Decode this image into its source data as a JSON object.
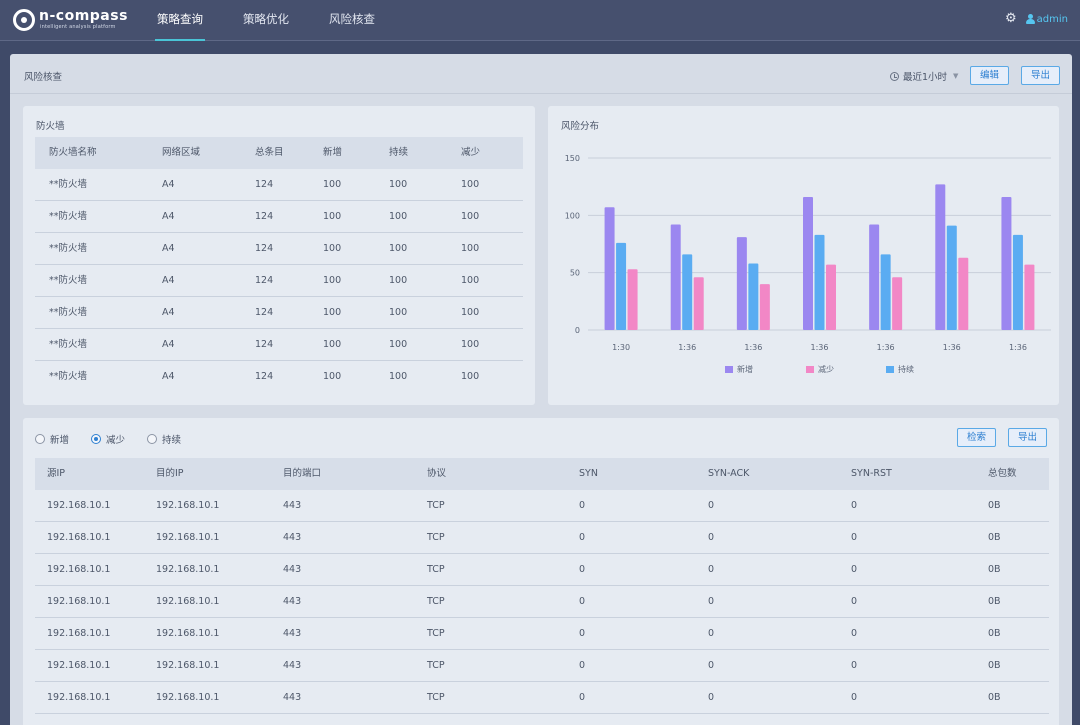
{
  "app": {
    "logo_text": "n-compass",
    "logo_subtitle": "intelligent analysis platform",
    "nav": [
      {
        "label": "策略查询",
        "active": true
      },
      {
        "label": "策略优化",
        "active": false
      },
      {
        "label": "风险核查",
        "active": false
      }
    ],
    "user_name": "admin"
  },
  "page": {
    "title": "风险核查",
    "time_range": "最近1小时",
    "edit_label": "编辑",
    "export_label": "导出"
  },
  "firewall": {
    "title": "防火墙",
    "columns": [
      "防火墙名称",
      "网络区域",
      "总条目",
      "新增",
      "持续",
      "减少"
    ],
    "rows": [
      [
        "**防火墙",
        "A4",
        "124",
        "100",
        "100",
        "100"
      ],
      [
        "**防火墙",
        "A4",
        "124",
        "100",
        "100",
        "100"
      ],
      [
        "**防火墙",
        "A4",
        "124",
        "100",
        "100",
        "100"
      ],
      [
        "**防火墙",
        "A4",
        "124",
        "100",
        "100",
        "100"
      ],
      [
        "**防火墙",
        "A4",
        "124",
        "100",
        "100",
        "100"
      ],
      [
        "**防火墙",
        "A4",
        "124",
        "100",
        "100",
        "100"
      ],
      [
        "**防火墙",
        "A4",
        "124",
        "100",
        "100",
        "100"
      ]
    ]
  },
  "chart_data": {
    "type": "bar",
    "title": "风险分布",
    "categories": [
      "1:30",
      "1:36",
      "1:36",
      "1:36",
      "1:36",
      "1:36",
      "1:36"
    ],
    "series": [
      {
        "name": "新增",
        "color": "#9b87f0",
        "values": [
          107,
          92,
          81,
          116,
          92,
          127,
          116
        ]
      },
      {
        "name": "持续",
        "color": "#5aacf2",
        "values": [
          76,
          66,
          58,
          83,
          66,
          91,
          83
        ]
      },
      {
        "name": "减少",
        "color": "#f287c6",
        "values": [
          53,
          46,
          40,
          57,
          46,
          63,
          57
        ]
      }
    ],
    "legend_order": [
      "新增",
      "减少",
      "持续"
    ],
    "ylim": [
      0,
      150
    ],
    "yticks": [
      0,
      50,
      100,
      150
    ],
    "grid": true,
    "legend": "bottom-center"
  },
  "packets": {
    "radios": [
      {
        "label": "新增",
        "checked": false
      },
      {
        "label": "减少",
        "checked": true
      },
      {
        "label": "持续",
        "checked": false
      }
    ],
    "search_label": "检索",
    "export_label": "导出",
    "columns": [
      "源IP",
      "目的IP",
      "目的端口",
      "协议",
      "SYN",
      "SYN-ACK",
      "SYN-RST",
      "总包数"
    ],
    "rows": [
      [
        "192.168.10.1",
        "192.168.10.1",
        "443",
        "TCP",
        "0",
        "0",
        "0",
        "0B"
      ],
      [
        "192.168.10.1",
        "192.168.10.1",
        "443",
        "TCP",
        "0",
        "0",
        "0",
        "0B"
      ],
      [
        "192.168.10.1",
        "192.168.10.1",
        "443",
        "TCP",
        "0",
        "0",
        "0",
        "0B"
      ],
      [
        "192.168.10.1",
        "192.168.10.1",
        "443",
        "TCP",
        "0",
        "0",
        "0",
        "0B"
      ],
      [
        "192.168.10.1",
        "192.168.10.1",
        "443",
        "TCP",
        "0",
        "0",
        "0",
        "0B"
      ],
      [
        "192.168.10.1",
        "192.168.10.1",
        "443",
        "TCP",
        "0",
        "0",
        "0",
        "0B"
      ],
      [
        "192.168.10.1",
        "192.168.10.1",
        "443",
        "TCP",
        "0",
        "0",
        "0",
        "0B"
      ]
    ]
  }
}
